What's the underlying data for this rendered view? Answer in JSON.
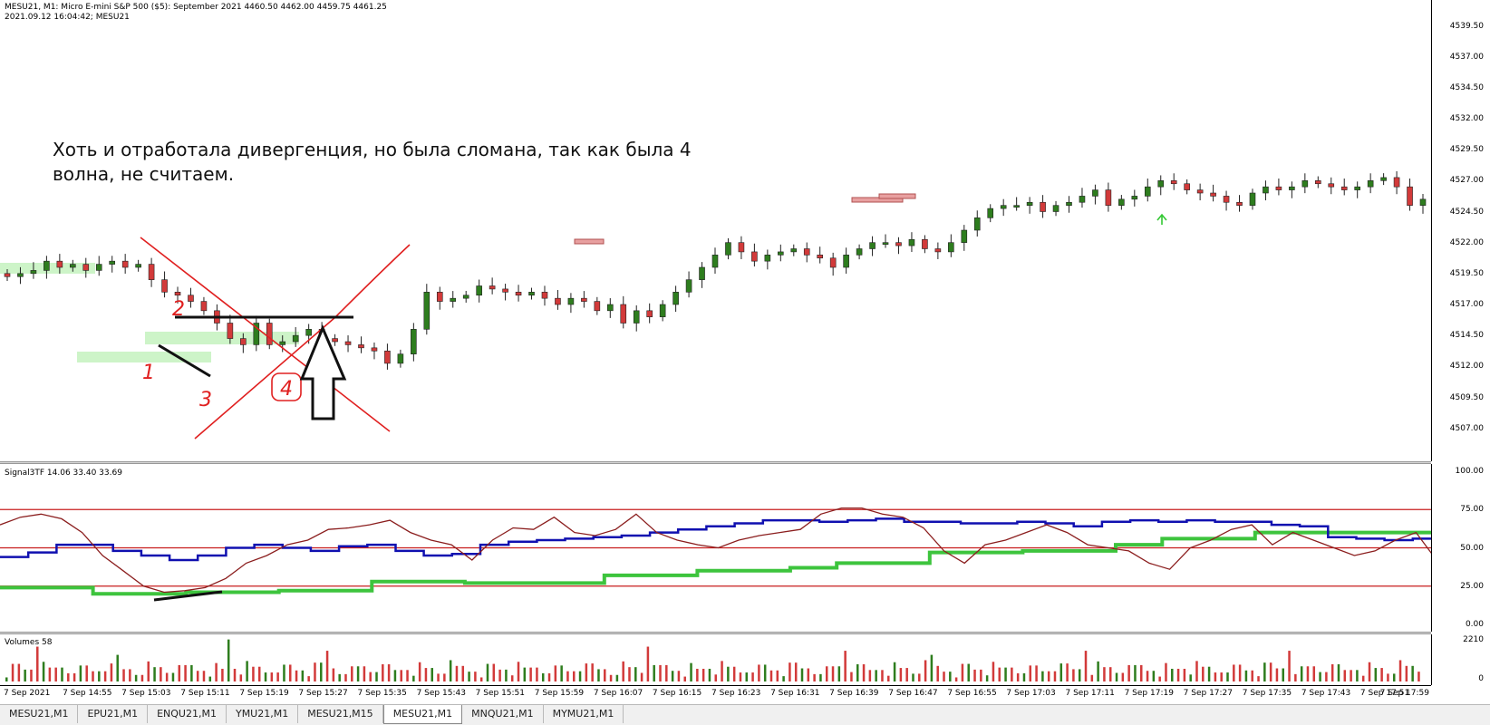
{
  "main": {
    "header_line1": "MESU21, M1:  Micro E-mini S&P 500 ($5): September 2021   4460.50 4462.00 4459.75 4461.25",
    "header_line2": "2021.09.12 16:04:42; MESU21",
    "annotation_text": "Хоть и отработала дивергенция, но была сломана, так как была 4 волна, не считаем.",
    "wave_labels": [
      "1",
      "2",
      "3",
      "4"
    ],
    "price_ticks": [
      "4539.50",
      "4537.00",
      "4534.50",
      "4532.00",
      "4529.50",
      "4527.00",
      "4524.50",
      "4522.00",
      "4519.50",
      "4517.00",
      "4514.50",
      "4512.00",
      "4509.50",
      "4507.00"
    ]
  },
  "indicator": {
    "header": "Signal3TF 14.06 33.40 33.69",
    "ticks": [
      "100.00",
      "75.00",
      "50.00",
      "25.00",
      "0.00"
    ]
  },
  "volumes": {
    "header": "Volumes 58",
    "ticks": [
      "2210",
      "0"
    ]
  },
  "time_axis": {
    "labels": [
      "7 Sep 2021",
      "7 Sep 14:55",
      "7 Sep 15:03",
      "7 Sep 15:11",
      "7 Sep 15:19",
      "7 Sep 15:27",
      "7 Sep 15:35",
      "7 Sep 15:43",
      "7 Sep 15:51",
      "7 Sep 15:59",
      "7 Sep 16:07",
      "7 Sep 16:15",
      "7 Sep 16:23",
      "7 Sep 16:31",
      "7 Sep 16:39",
      "7 Sep 16:47",
      "7 Sep 16:55",
      "7 Sep 17:03",
      "7 Sep 17:11",
      "7 Sep 17:19",
      "7 Sep 17:27",
      "7 Sep 17:35",
      "7 Sep 17:43",
      "7 Sep 17:51",
      "7 Sep 17:59"
    ]
  },
  "tabs": [
    "MESU21,M1",
    "EPU21,M1",
    "ENQU21,M1",
    "YMU21,M1",
    "MESU21,M15",
    "MESU21,M1",
    "MNQU21,M1",
    "MYMU21,M1"
  ],
  "active_tab_index": 5,
  "colors": {
    "bull": "#2e7d1e",
    "bear": "#d23a3a",
    "annotation_red": "#e02020",
    "blue_line": "#1010b0",
    "green_line": "#3dc43d",
    "brown_line": "#8b1e1e",
    "level_line": "#c81e1e"
  },
  "chart_data": {
    "type": "candlestick",
    "price_ylim": [
      4505.0,
      4541.0
    ],
    "close_series": [
      4519.25,
      4519.5,
      4519.75,
      4520.5,
      4520.0,
      4520.25,
      4519.75,
      4520.25,
      4520.5,
      4520.0,
      4520.25,
      4519.0,
      4518.0,
      4517.75,
      4517.25,
      4516.5,
      4515.5,
      4514.25,
      4513.75,
      4515.5,
      4513.75,
      4514.0,
      4514.5,
      4515.0,
      4514.25,
      4514.0,
      4513.75,
      4513.5,
      4513.25,
      4512.25,
      4513.0,
      4515.0,
      4518.0,
      4517.25,
      4517.5,
      4517.75,
      4518.5,
      4518.25,
      4518.0,
      4517.75,
      4518.0,
      4517.5,
      4517.0,
      4517.5,
      4517.25,
      4516.5,
      4517.0,
      4515.5,
      4516.5,
      4516.0,
      4517.0,
      4518.0,
      4519.0,
      4520.0,
      4521.0,
      4522.0,
      4521.25,
      4520.5,
      4521.0,
      4521.25,
      4521.5,
      4521.0,
      4520.75,
      4520.0,
      4521.0,
      4521.5,
      4522.0,
      4522.0,
      4521.75,
      4522.25,
      4521.5,
      4521.25,
      4522.0,
      4523.0,
      4524.0,
      4524.75,
      4525.0,
      4525.0,
      4525.25,
      4524.5,
      4525.0,
      4525.25,
      4525.75,
      4526.25,
      4525.0,
      4525.5,
      4525.75,
      4526.5,
      4527.0,
      4526.75,
      4526.25,
      4526.0,
      4525.75,
      4525.25,
      4525.0,
      4526.0,
      4526.5,
      4526.25,
      4526.5,
      4527.0,
      4526.75,
      4526.5,
      4526.25,
      4526.5,
      4527.0,
      4527.25,
      4526.5,
      4525.0,
      4525.5
    ],
    "indicator_ylim": [
      0,
      100
    ],
    "indicator_levels": [
      75,
      50,
      25
    ],
    "indicator_series": [
      {
        "values": [
          44,
          47,
          52,
          52,
          48,
          45,
          42,
          45,
          50,
          52,
          50,
          48,
          51,
          52,
          48,
          45,
          46,
          52,
          54,
          55,
          56,
          57,
          58,
          60,
          62,
          64,
          66,
          68,
          68,
          67,
          68,
          69,
          67,
          67,
          66,
          66,
          67,
          66,
          64,
          67,
          68,
          67,
          68,
          67,
          67,
          65,
          64,
          57,
          56,
          55,
          56
        ]
      },
      {
        "values": [
          24,
          24,
          20,
          20,
          21,
          21,
          22,
          22,
          28,
          28,
          27,
          27,
          27,
          32,
          32,
          35,
          35,
          37,
          40,
          40,
          47,
          47,
          48,
          48,
          52,
          56,
          56,
          60,
          60,
          60,
          60
        ]
      },
      {
        "values": [
          65,
          70,
          72,
          69,
          60,
          45,
          35,
          25,
          21,
          22,
          24,
          30,
          40,
          45,
          52,
          55,
          62,
          63,
          65,
          68,
          60,
          55,
          52,
          42,
          55,
          63,
          62,
          70,
          60,
          58,
          62,
          72,
          60,
          55,
          52,
          50,
          55,
          58,
          60,
          62,
          72,
          76,
          76,
          72,
          70,
          63,
          48,
          40,
          52,
          55,
          60,
          65,
          60,
          52,
          50,
          48,
          40,
          36,
          50,
          55,
          62,
          65,
          52,
          60,
          55,
          50,
          45,
          48,
          55,
          60,
          42
        ]
      }
    ],
    "volume_ylim": [
      0,
      2210
    ]
  }
}
